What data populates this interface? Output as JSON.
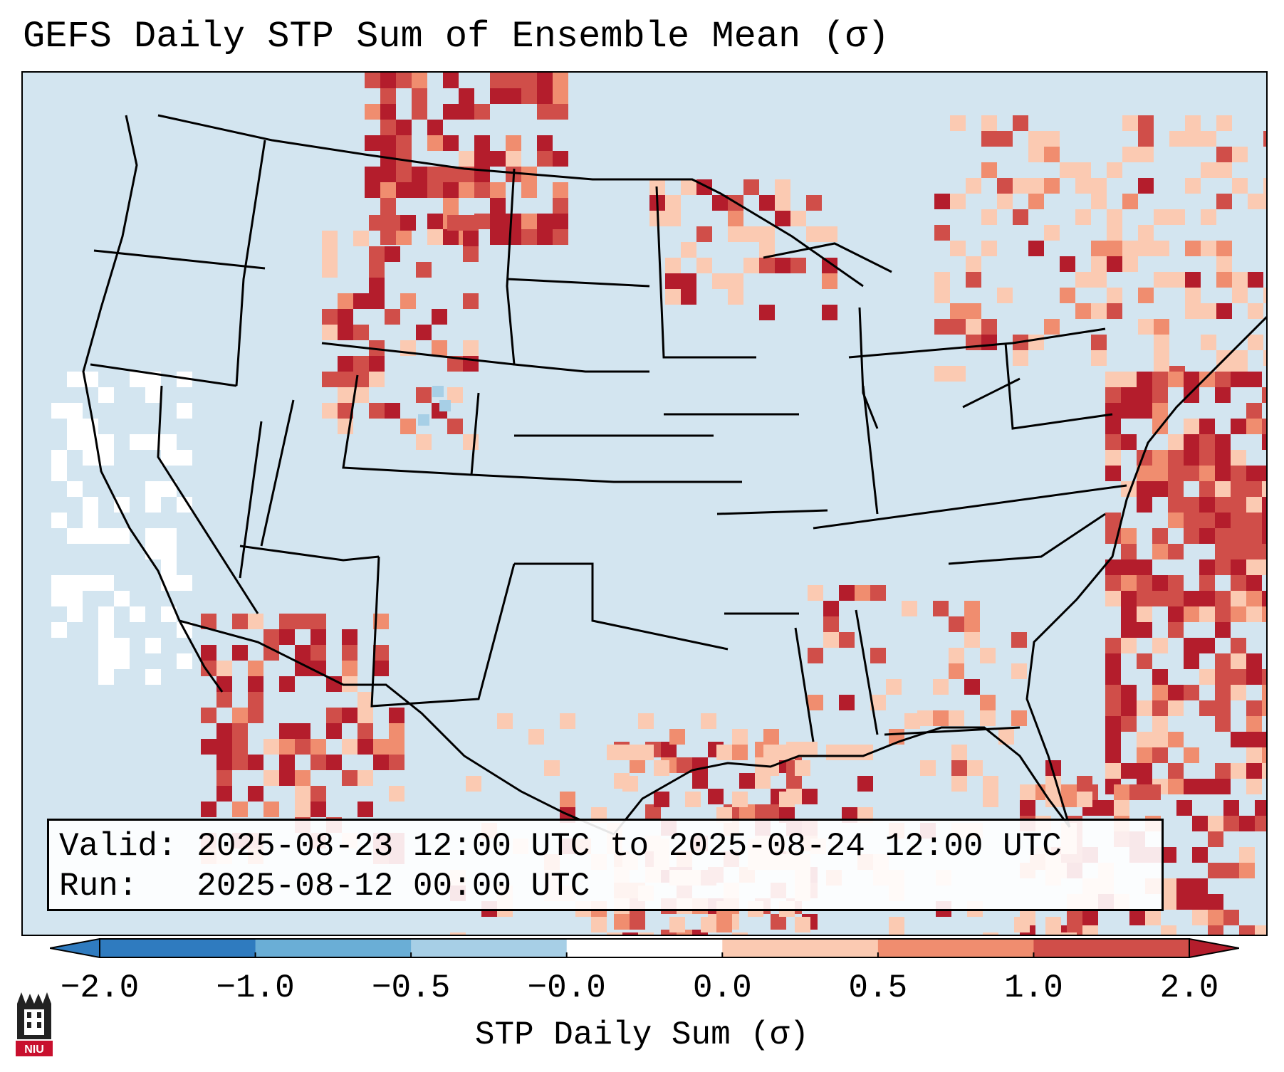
{
  "title": "GEFS Daily STP Sum of Ensemble Mean (σ)",
  "info": {
    "valid_label": "Valid:",
    "valid_value": "2025-08-23 12:00 UTC to 2025-08-24 12:00 UTC",
    "run_label": "Run:",
    "run_value": "2025-08-12 00:00 UTC"
  },
  "colorbar": {
    "label": "STP Daily Sum (σ)",
    "ticks": [
      "−2.0",
      "−1.0",
      "−0.5",
      "−0.0",
      "0.0",
      "0.5",
      "1.0",
      "2.0"
    ],
    "colors": [
      "#2f7bbf",
      "#6aaed6",
      "#a7cfe6",
      "#ffffff",
      "#ffffff",
      "#fbcab2",
      "#f08d6f",
      "#d04e49",
      "#b41d2c"
    ],
    "extend": "both"
  },
  "map": {
    "ocean_color": "#d3e5f0",
    "land_color": "#d3e5f0",
    "border_color": "#000000"
  },
  "logo": {
    "text": "NIU"
  }
}
